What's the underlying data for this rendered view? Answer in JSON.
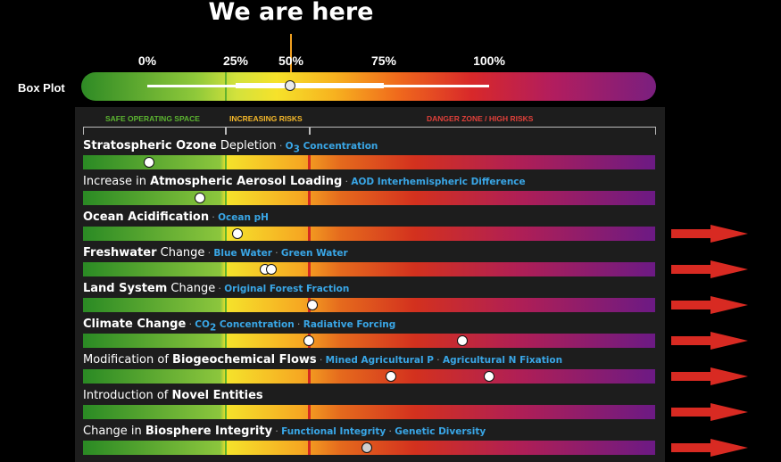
{
  "headline": "We are here",
  "boxplot": {
    "label": "Box Plot",
    "tick_labels": [
      "0%",
      "25%",
      "50%",
      "75%",
      "100%"
    ]
  },
  "zones": {
    "safe": "SAFE OPERATING SPACE",
    "increasing": "INCREASING RISKS",
    "danger": "DANGER ZONE / HIGH RISKS"
  },
  "colors": {
    "safe": "#5cb531",
    "increasing": "#f5b82a",
    "danger": "#e0403a",
    "indicator": "#39a6e6",
    "arrow": "#d82a22"
  },
  "rows": [
    {
      "pre": "",
      "bold": "Stratospheric Ozone",
      "post": " Depletion",
      "ind1": "O",
      "ind1_sub": "3",
      "ind1_post": " Concentration",
      "ind2": ""
    },
    {
      "pre": "Increase in ",
      "bold": "Atmospheric Aerosol Loading",
      "post": "",
      "ind1": "AOD Interhemispheric Difference",
      "ind1_sub": "",
      "ind1_post": "",
      "ind2": ""
    },
    {
      "pre": "",
      "bold": "Ocean Acidification",
      "post": "",
      "ind1": "Ocean pH",
      "ind1_sub": "",
      "ind1_post": "",
      "ind2": ""
    },
    {
      "pre": "",
      "bold": "Freshwater",
      "post": " Change",
      "ind1": "Blue Water",
      "ind1_sub": "",
      "ind1_post": "",
      "ind2": "Green Water"
    },
    {
      "pre": "",
      "bold": "Land System",
      "post": " Change",
      "ind1": "Original Forest Fraction",
      "ind1_sub": "",
      "ind1_post": "",
      "ind2": ""
    },
    {
      "pre": "",
      "bold": "Climate Change",
      "post": "",
      "ind1": "CO",
      "ind1_sub": "2",
      "ind1_post": " Concentration",
      "ind2": "Radiative Forcing"
    },
    {
      "pre": "Modification of ",
      "bold": "Biogeochemical Flows",
      "post": "",
      "ind1": "Mined Agricultural P",
      "ind1_sub": "",
      "ind1_post": "",
      "ind2": "Agricultural N Fixation"
    },
    {
      "pre": "Introduction of ",
      "bold": "Novel Entities",
      "post": "",
      "ind1": "",
      "ind1_sub": "",
      "ind1_post": "",
      "ind2": ""
    },
    {
      "pre": "Change in ",
      "bold": "Biosphere Integrity",
      "post": "",
      "ind1": "Functional Integrity",
      "ind1_sub": "",
      "ind1_post": "",
      "ind2": "Genetic Diversity"
    }
  ],
  "chart_data": {
    "type": "scatter",
    "x_ticks": [
      "0%",
      "25%",
      "50%",
      "75%",
      "100%"
    ],
    "boxplot": {
      "min": 0.0,
      "q1": 0.26,
      "median": 0.46,
      "q3": 0.67,
      "max": 1.0
    },
    "points": [
      {
        "row": "Stratospheric Ozone Depletion",
        "value": 0.0
      },
      {
        "row": "Increase in Atmospheric Aerosol Loading",
        "value": 0.15
      },
      {
        "row": "Ocean Acidification",
        "value": 0.26
      },
      {
        "row": "Freshwater Change",
        "value": 0.34
      },
      {
        "row": "Freshwater Change",
        "value": 0.36
      },
      {
        "row": "Land System Change",
        "value": 0.48
      },
      {
        "row": "Climate Change",
        "value": 0.47
      },
      {
        "row": "Climate Change",
        "value": 0.92
      },
      {
        "row": "Modification of Biogeochemical Flows",
        "value": 0.71
      },
      {
        "row": "Modification of Biogeochemical Flows",
        "value": 1.0
      },
      {
        "row": "Change in Biosphere Integrity",
        "value": 0.64
      }
    ],
    "off_scale_rows": [
      "Ocean Acidification",
      "Freshwater Change",
      "Land System Change",
      "Climate Change",
      "Modification of Biogeochemical Flows",
      "Introduction of Novel Entities",
      "Change in Biosphere Integrity"
    ]
  }
}
